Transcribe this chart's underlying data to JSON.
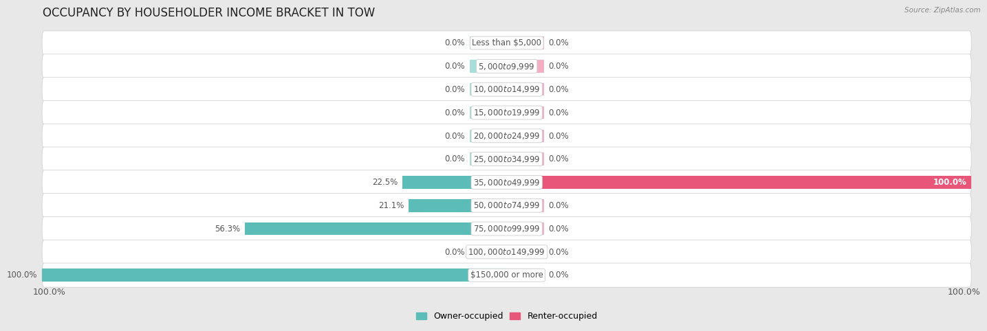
{
  "title": "OCCUPANCY BY HOUSEHOLDER INCOME BRACKET IN TOW",
  "source": "Source: ZipAtlas.com",
  "categories": [
    "Less than $5,000",
    "$5,000 to $9,999",
    "$10,000 to $14,999",
    "$15,000 to $19,999",
    "$20,000 to $24,999",
    "$25,000 to $34,999",
    "$35,000 to $49,999",
    "$50,000 to $74,999",
    "$75,000 to $99,999",
    "$100,000 to $149,999",
    "$150,000 or more"
  ],
  "owner_occupied": [
    0.0,
    0.0,
    0.0,
    0.0,
    0.0,
    0.0,
    22.5,
    21.1,
    56.3,
    0.0,
    100.0
  ],
  "renter_occupied": [
    0.0,
    0.0,
    0.0,
    0.0,
    0.0,
    0.0,
    100.0,
    0.0,
    0.0,
    0.0,
    0.0
  ],
  "owner_color": "#5bbcb8",
  "renter_color": "#f07aa0",
  "renter_color_full": "#e8567a",
  "owner_color_light": "#a8deda",
  "renter_color_light": "#f4afc5",
  "bar_height": 0.55,
  "stub_size": 8.0,
  "background_color": "#e8e8e8",
  "row_color_even": "#f5f5f5",
  "row_color_odd": "#ebebeb",
  "label_color": "#555555",
  "title_fontsize": 12,
  "axis_fontsize": 9,
  "legend_fontsize": 9,
  "label_fontsize": 8.5,
  "category_fontsize": 8.5,
  "x_max": 100,
  "bottom_left_label": "100.0%",
  "bottom_right_label": "100.0%"
}
